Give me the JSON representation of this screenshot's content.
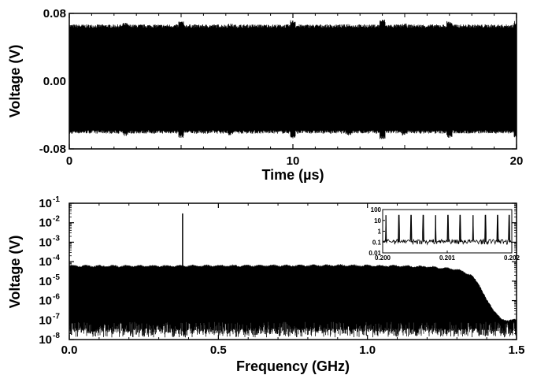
{
  "chart_data": [
    {
      "type": "line",
      "xlabel": "Time (µs)",
      "ylabel": "Voltage (V)",
      "xlim": [
        0,
        20
      ],
      "ylim": [
        -0.08,
        0.08
      ],
      "x_ticks": [
        {
          "value": 0,
          "label": "0"
        },
        {
          "value": 10,
          "label": "10"
        },
        {
          "value": 20,
          "label": "20"
        }
      ],
      "y_ticks": [
        {
          "value": 0.08,
          "label": "0.08"
        },
        {
          "value": 0.0,
          "label": "0.00"
        },
        {
          "value": -0.08,
          "label": "-0.08"
        }
      ],
      "series": [
        {
          "envelope_upper": 0.065,
          "envelope_lower": -0.06,
          "x": [
            0,
            2.5,
            5,
            7.2,
            10,
            12.5,
            14,
            15,
            17,
            20
          ],
          "y": [
            0.065,
            0.067,
            0.069,
            0.066,
            0.07,
            0.066,
            0.071,
            0.066,
            0.069,
            0.069
          ]
        }
      ],
      "color": "#000000"
    },
    {
      "type": "line",
      "xlabel": "Frequency (GHz)",
      "ylabel": "Voltage (V)",
      "yscale": "log",
      "xlim": [
        0,
        1.5
      ],
      "ylim": [
        1e-08,
        0.1
      ],
      "x_ticks": [
        {
          "value": 0.0,
          "label": "0.0"
        },
        {
          "value": 0.5,
          "label": "0.5"
        },
        {
          "value": 1.0,
          "label": "1.0"
        },
        {
          "value": 1.5,
          "label": "1.5"
        }
      ],
      "y_ticks": [
        {
          "exp": -1,
          "base": "10",
          "power": "-1"
        },
        {
          "exp": -2,
          "base": "10",
          "power": "-2"
        },
        {
          "exp": -3,
          "base": "10",
          "power": "-3"
        },
        {
          "exp": -4,
          "base": "10",
          "power": "-4"
        },
        {
          "exp": -5,
          "base": "10",
          "power": "-5"
        },
        {
          "exp": -6,
          "base": "10",
          "power": "-6"
        },
        {
          "exp": -7,
          "base": "10",
          "power": "-7"
        },
        {
          "exp": -8,
          "base": "10",
          "power": "-8"
        }
      ],
      "series": [
        {
          "envelope_x": [
            0,
            0.3,
            0.6,
            0.9,
            1.1,
            1.2,
            1.3,
            1.35,
            1.38,
            1.4,
            1.45,
            1.5
          ],
          "envelope_y": [
            6e-05,
            6e-05,
            6.2e-05,
            6.5e-05,
            6e-05,
            5.5e-05,
            4e-05,
            2e-05,
            5e-06,
            1e-06,
            1e-07,
            1e-07
          ],
          "peak": {
            "x": 0.38,
            "y": 0.03
          }
        }
      ],
      "inset": {
        "type": "line",
        "yscale": "log",
        "xlim": [
          0.2,
          0.202
        ],
        "ylim": [
          0.01,
          100
        ],
        "x_ticks": [
          {
            "value": 0.2,
            "label": "0.200"
          },
          {
            "value": 0.201,
            "label": "0.201"
          },
          {
            "value": 0.202,
            "label": "0.202"
          }
        ],
        "y_ticks": [
          {
            "value": 100,
            "label": "100"
          },
          {
            "value": 10,
            "label": "10"
          },
          {
            "value": 1,
            "label": "1"
          },
          {
            "value": 0.1,
            "label": "0.1"
          },
          {
            "value": 0.01,
            "label": "0.01"
          }
        ],
        "peaks_x": [
          0.20005,
          0.20025,
          0.20044,
          0.20063,
          0.20082,
          0.20101,
          0.2012,
          0.2014,
          0.20159,
          0.20178,
          0.20196
        ],
        "peak_y": 30,
        "baseline": 0.1
      }
    }
  ]
}
